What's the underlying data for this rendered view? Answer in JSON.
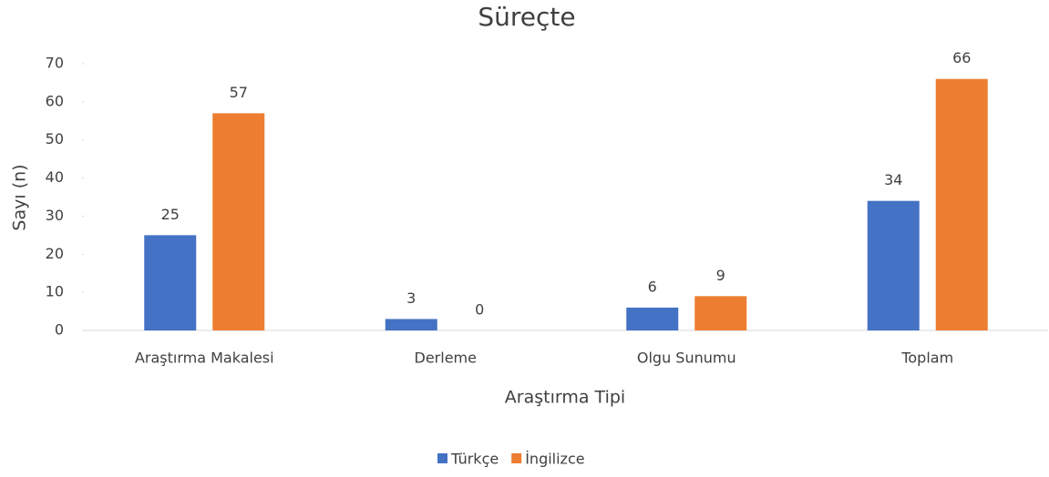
{
  "chart_data": {
    "type": "bar",
    "title": "Süreçte",
    "categories": [
      "Araştırma Makalesi",
      "Derleme",
      "Olgu Sunumu",
      "Toplam"
    ],
    "series": [
      {
        "name": "Türkçe",
        "color": "#4472c4",
        "values": [
          25,
          3,
          6,
          34
        ]
      },
      {
        "name": "İngilizce",
        "color": "#ed7d31",
        "values": [
          57,
          0,
          9,
          66
        ]
      }
    ],
    "ylim": [
      0,
      70
    ],
    "yticks": [
      0,
      10,
      20,
      30,
      40,
      50,
      60,
      70
    ],
    "grid": false,
    "y_label": "Sayı (n)",
    "x_label": "Araştırma Tipi",
    "legend": "bottom"
  }
}
